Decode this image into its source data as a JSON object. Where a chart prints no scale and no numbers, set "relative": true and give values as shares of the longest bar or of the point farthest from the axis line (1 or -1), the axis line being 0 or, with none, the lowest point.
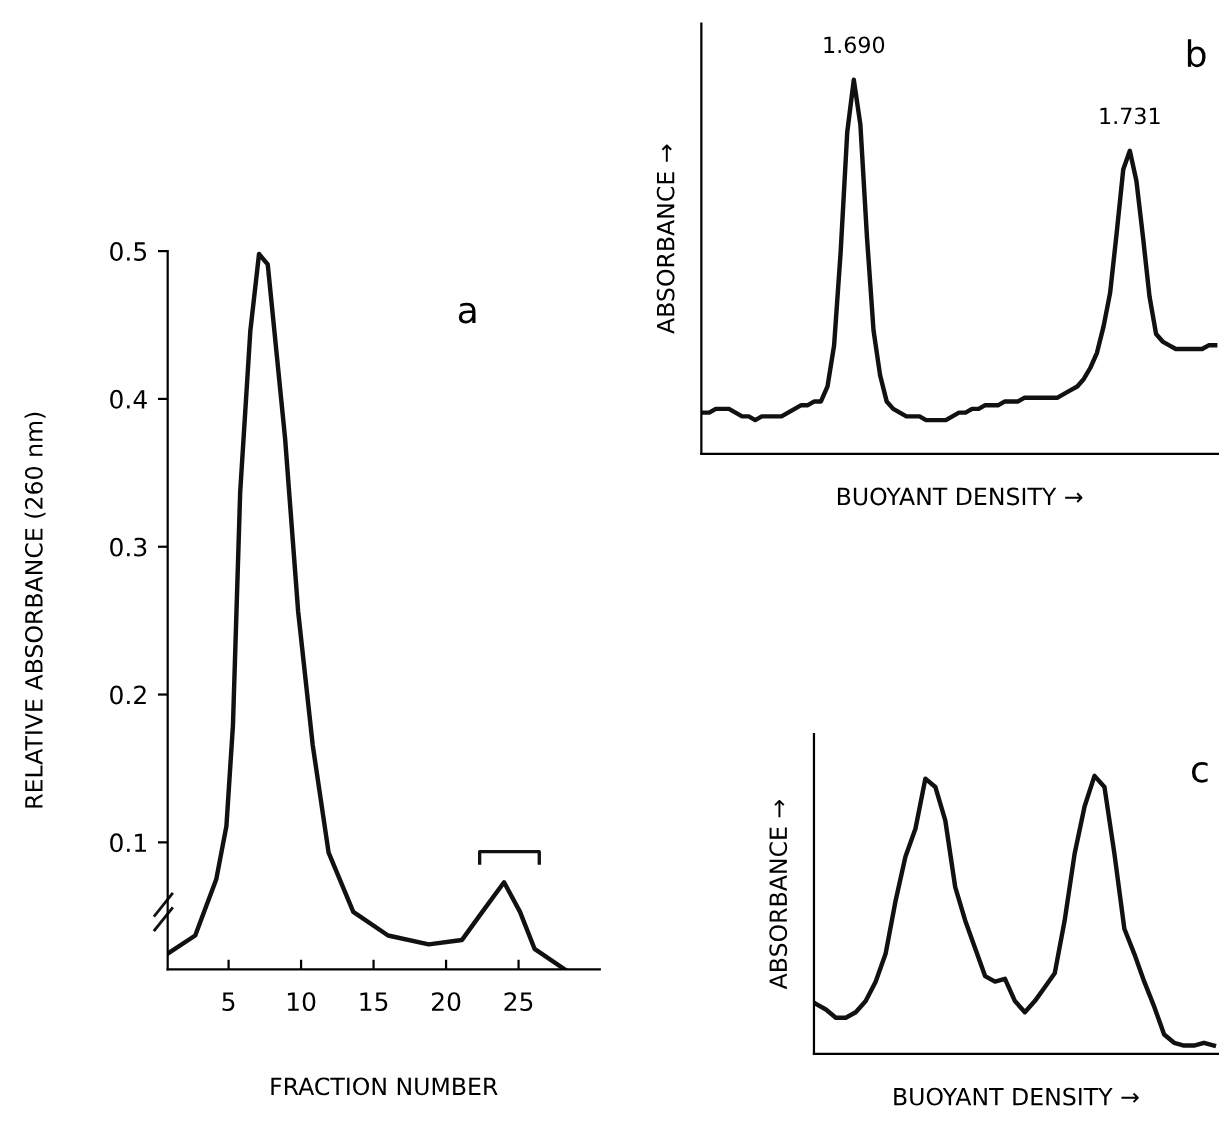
{
  "chart_data": [
    {
      "type": "line",
      "title": "a",
      "xlabel": "FRACTION NUMBER",
      "ylabel": "RELATIVE ABSORBANCE (260 nm)",
      "x": [
        0.85,
        2.7,
        4.15,
        4.85,
        5.3,
        5.8,
        6.5,
        7.1,
        7.7,
        8.9,
        9.8,
        10.8,
        11.9,
        13.6,
        16.0,
        18.8,
        21.1,
        22.5,
        24.0,
        25.1,
        26.1,
        28.2
      ],
      "series": [
        {
          "color": "#111111",
          "values": [
            0.025,
            0.037,
            0.075,
            0.111,
            0.179,
            0.337,
            0.446,
            0.498,
            0.491,
            0.373,
            0.256,
            0.166,
            0.093,
            0.053,
            0.037,
            0.031,
            0.034,
            0.053,
            0.073,
            0.053,
            0.028,
            0.014
          ]
        }
      ],
      "xlim": [
        0.8,
        30.6
      ],
      "ylim": [
        0.014,
        0.5
      ],
      "xticks": [
        5,
        10,
        15,
        20,
        25
      ],
      "yticks": [
        0.1,
        0.2,
        0.3,
        0.4,
        0.5
      ],
      "grid": false,
      "legend": false
    },
    {
      "type": "line",
      "title": "b",
      "xlabel": "BUOYANT DENSITY →",
      "ylabel": "ABSORBANCE →",
      "relative": true,
      "categories": [
        null,
        null,
        null,
        null,
        null,
        null,
        null,
        null,
        null,
        null,
        null,
        null,
        null,
        null,
        null,
        null,
        null,
        null,
        null,
        null,
        null,
        null,
        null,
        null,
        null,
        null,
        null,
        null,
        null,
        null,
        null,
        null,
        null,
        null,
        null,
        null,
        null,
        null,
        null,
        null,
        null,
        null,
        null,
        null,
        null,
        null,
        null,
        null,
        null,
        null,
        null,
        null,
        null,
        null,
        null,
        null,
        null,
        null,
        null,
        null,
        null,
        null,
        null,
        null,
        null,
        null,
        null,
        null,
        null,
        null,
        null,
        null,
        null,
        null,
        null,
        null,
        null,
        null,
        null
      ],
      "series": [
        {
          "color": "#111111",
          "values": [
            0.11,
            0.11,
            0.12,
            0.12,
            0.12,
            0.11,
            0.1,
            0.1,
            0.09,
            0.1,
            0.1,
            0.1,
            0.1,
            0.11,
            0.12,
            0.13,
            0.13,
            0.14,
            0.14,
            0.18,
            0.29,
            0.54,
            0.86,
            1,
            0.88,
            0.58,
            0.33,
            0.21,
            0.14,
            0.12,
            0.11,
            0.1,
            0.1,
            0.1,
            0.09,
            0.09,
            0.09,
            0.09,
            0.1,
            0.11,
            0.11,
            0.12,
            0.12,
            0.13,
            0.13,
            0.13,
            0.14,
            0.14,
            0.14,
            0.15,
            0.15,
            0.15,
            0.15,
            0.15,
            0.15,
            0.16,
            0.17,
            0.18,
            0.2,
            0.23,
            0.27,
            0.34,
            0.43,
            0.59,
            0.76,
            0.81,
            0.73,
            0.58,
            0.42,
            0.32,
            0.3,
            0.29,
            0.28,
            0.28,
            0.28,
            0.28,
            0.28,
            0.29,
            0.29
          ]
        }
      ],
      "annotations": [
        "1.690",
        "1.731"
      ],
      "grid": false,
      "legend": false
    },
    {
      "type": "line",
      "title": "c",
      "xlabel": "BUOYANT DENSITY →",
      "ylabel": "ABSORBANCE →",
      "relative": true,
      "categories": [
        null,
        null,
        null,
        null,
        null,
        null,
        null,
        null,
        null,
        null,
        null,
        null,
        null,
        null,
        null,
        null,
        null,
        null,
        null,
        null,
        null,
        null,
        null,
        null,
        null,
        null,
        null,
        null,
        null,
        null,
        null,
        null,
        null,
        null,
        null,
        null,
        null,
        null,
        null,
        null,
        null
      ],
      "series": [
        {
          "color": "#111111",
          "values": [
            0.18,
            0.16,
            0.13,
            0.13,
            0.15,
            0.19,
            0.26,
            0.36,
            0.55,
            0.71,
            0.81,
            0.99,
            0.96,
            0.84,
            0.6,
            0.48,
            0.38,
            0.28,
            0.26,
            0.27,
            0.19,
            0.15,
            0.19,
            0.24,
            0.29,
            0.48,
            0.72,
            0.89,
            1,
            0.96,
            0.72,
            0.45,
            0.36,
            0.26,
            0.17,
            0.07,
            0.04,
            0.03,
            0.03,
            0.04,
            0.03
          ]
        }
      ],
      "grid": false,
      "legend": false
    }
  ]
}
